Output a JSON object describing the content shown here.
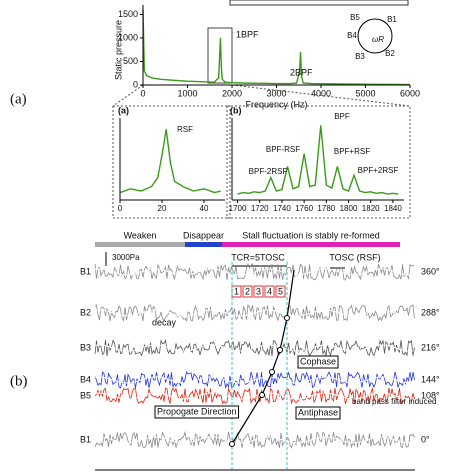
{
  "figure_labels": {
    "a": "(a)",
    "b": "(b)"
  },
  "chart_data": [
    {
      "type": "line",
      "x_label": "Frequency (Hz)",
      "y_label": "Static pressure",
      "x": [
        0,
        30,
        80,
        200,
        400,
        700,
        1000,
        1300,
        1600,
        1700,
        1740,
        1760,
        1780,
        1850,
        2000,
        2300,
        2700,
        3000,
        3300,
        3450,
        3520,
        3540,
        3560,
        3600,
        3800,
        4200,
        4700,
        5200,
        5700,
        6000
      ],
      "values": [
        1600,
        300,
        200,
        150,
        120,
        100,
        80,
        70,
        60,
        150,
        1000,
        400,
        120,
        60,
        50,
        40,
        35,
        30,
        30,
        40,
        300,
        700,
        200,
        40,
        30,
        25,
        20,
        15,
        12,
        10
      ],
      "color": "#3a9a1a",
      "xlim": [
        0,
        6000
      ],
      "ylim": [
        0,
        1700
      ],
      "xticks": [
        0,
        1000,
        2000,
        3000,
        4000,
        5000,
        6000
      ],
      "yticks": [
        0,
        500,
        1000,
        1500
      ],
      "annotations": [
        "1BPF",
        "2BPF"
      ]
    },
    {
      "type": "line",
      "panel_label": "(a)",
      "x": [
        0,
        5,
        10,
        15,
        18,
        20,
        22,
        24,
        26,
        30,
        35,
        40,
        45,
        48
      ],
      "values": [
        10,
        15,
        12,
        18,
        30,
        60,
        95,
        50,
        25,
        18,
        12,
        15,
        10,
        12
      ],
      "color": "#3a9a1a",
      "xlim": [
        0,
        50
      ],
      "ylim": [
        0,
        110
      ],
      "xticks": [
        0,
        20,
        40
      ],
      "annotations": [
        "RSF"
      ]
    },
    {
      "type": "line",
      "panel_label": "(b)",
      "x": [
        1700,
        1705,
        1710,
        1715,
        1720,
        1725,
        1730,
        1735,
        1740,
        1745,
        1750,
        1755,
        1760,
        1765,
        1770,
        1775,
        1780,
        1785,
        1790,
        1795,
        1800,
        1805,
        1810,
        1815,
        1820,
        1825,
        1830,
        1835,
        1840,
        1845
      ],
      "values": [
        8,
        10,
        9,
        11,
        10,
        12,
        30,
        12,
        14,
        45,
        15,
        18,
        62,
        18,
        20,
        100,
        20,
        16,
        45,
        15,
        12,
        33,
        12,
        10,
        11,
        9,
        10,
        8,
        9,
        8
      ],
      "color": "#3a9a1a",
      "xlim": [
        1695,
        1850
      ],
      "ylim": [
        0,
        110
      ],
      "xticks": [
        1700,
        1720,
        1740,
        1760,
        1780,
        1800,
        1820,
        1840
      ],
      "annotations": [
        "BPF-2RSF",
        "BPF-RSF",
        "BPF",
        "BPF+RSF",
        "BPF+2RSF"
      ]
    }
  ],
  "rotor": {
    "blades": [
      "B1",
      "B2",
      "B3",
      "B4",
      "B5"
    ],
    "omega": "ωR"
  },
  "panel_b": {
    "stages": [
      "Weaken",
      "Disappear",
      "Stall fluctuation is stably re-formed"
    ],
    "scale": "3000Pa",
    "period": "TCR=5TOSC",
    "osc": "TOSC (RSF)",
    "counts": [
      "1",
      "2",
      "3",
      "4",
      "5"
    ],
    "rows": [
      {
        "label": "B1",
        "angle": "360°",
        "color": "#8a8a8a"
      },
      {
        "label": "B2",
        "angle": "288°",
        "color": "#8a8a8a"
      },
      {
        "label": "B3",
        "angle": "216°",
        "color": "#555555"
      },
      {
        "label": "B4",
        "angle": "144°",
        "color": "#2233dd"
      },
      {
        "label": "B5",
        "angle": "108°",
        "color": "#dd2211"
      },
      {
        "label": "B1",
        "angle": "0°",
        "color": "#8a8a8a"
      }
    ],
    "notes": [
      "decay",
      "Cophase",
      "Antiphase",
      "Propogate Direction",
      "band pass filter induced"
    ]
  }
}
